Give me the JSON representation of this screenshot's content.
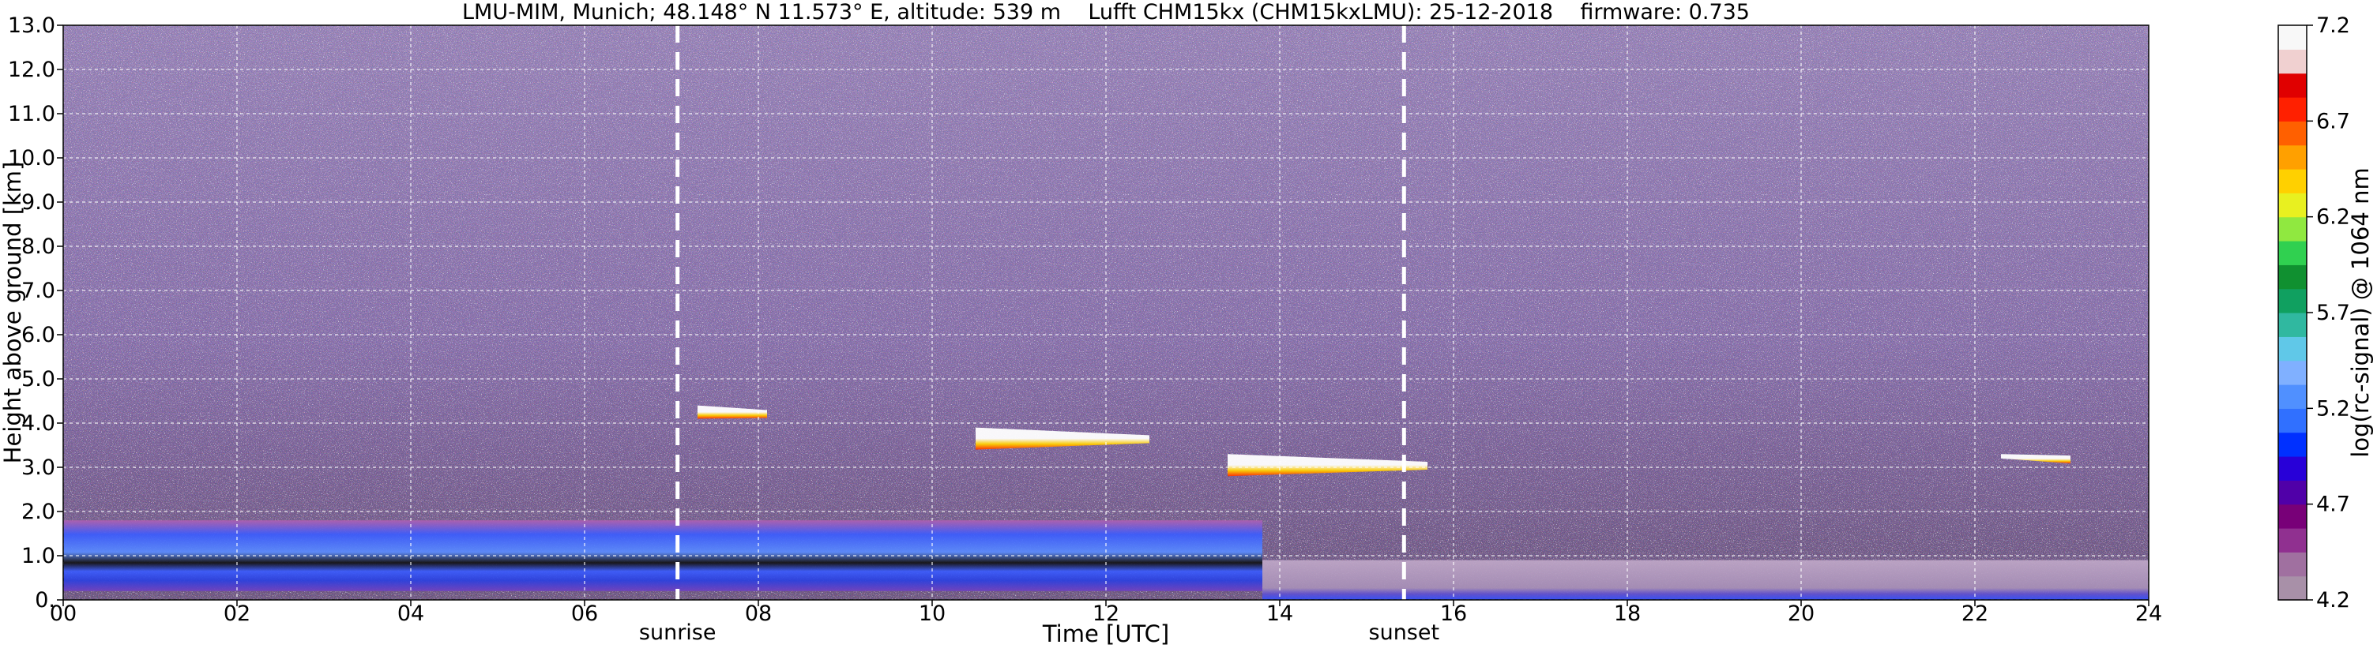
{
  "chart_data": {
    "type": "heatmap",
    "title": "LMU-MIM, Munich; 48.148° N 11.573° E, altitude: 539 m    Lufft CHM15kx (CHM15kxLMU): 25-12-2018    firmware: 0.735",
    "xlabel": "Time [UTC]",
    "ylabel": "Height above ground [km]",
    "xlim": [
      0,
      24
    ],
    "ylim": [
      0,
      13
    ],
    "x_ticks": [
      "00",
      "02",
      "04",
      "06",
      "08",
      "10",
      "12",
      "14",
      "16",
      "18",
      "20",
      "22",
      "24"
    ],
    "y_ticks": [
      "0.",
      "1.0",
      "2.0",
      "3.0",
      "4.0",
      "5.0",
      "6.0",
      "7.0",
      "8.0",
      "9.0",
      "10.0",
      "11.0",
      "12.0",
      "13.0"
    ],
    "grid": true,
    "annotations": [
      {
        "label": "sunrise",
        "x": 7.07
      },
      {
        "label": "sunset",
        "x": 15.43
      }
    ],
    "colorbar": {
      "label": "log(rc-signal) @ 1064 nm",
      "range": [
        4.2,
        7.2
      ],
      "ticks": [
        "4.2",
        "4.7",
        "5.2",
        "5.7",
        "6.2",
        "6.7",
        "7.2"
      ],
      "colors": [
        "#a890a8",
        "#a070a0",
        "#903090",
        "#780078",
        "#5000a8",
        "#2800d8",
        "#0030ff",
        "#3070ff",
        "#5090ff",
        "#80b0ff",
        "#60c8e8",
        "#30b8a0",
        "#10a060",
        "#109030",
        "#30d050",
        "#90e840",
        "#e8f020",
        "#ffd000",
        "#ffa000",
        "#ff6000",
        "#ff2000",
        "#e00000",
        "#f0d0d0",
        "#f8f8f8"
      ]
    },
    "features": [
      {
        "name": "boundary layer aerosol",
        "x": [
          0,
          13.8
        ],
        "y": [
          0.2,
          1.8
        ]
      },
      {
        "name": "cloud layer",
        "x": [
          7.3,
          8.1
        ],
        "y": [
          4.1,
          4.4
        ]
      },
      {
        "name": "cloud layer",
        "x": [
          10.5,
          12.5
        ],
        "y": [
          3.4,
          3.9
        ]
      },
      {
        "name": "cloud layer",
        "x": [
          13.4,
          15.7
        ],
        "y": [
          2.8,
          3.3
        ]
      },
      {
        "name": "cloud layer",
        "x": [
          22.3,
          23.1
        ],
        "y": [
          3.2,
          3.3
        ]
      },
      {
        "name": "residual layer",
        "x": [
          13.8,
          24
        ],
        "y": [
          0.0,
          0.9
        ]
      }
    ]
  }
}
